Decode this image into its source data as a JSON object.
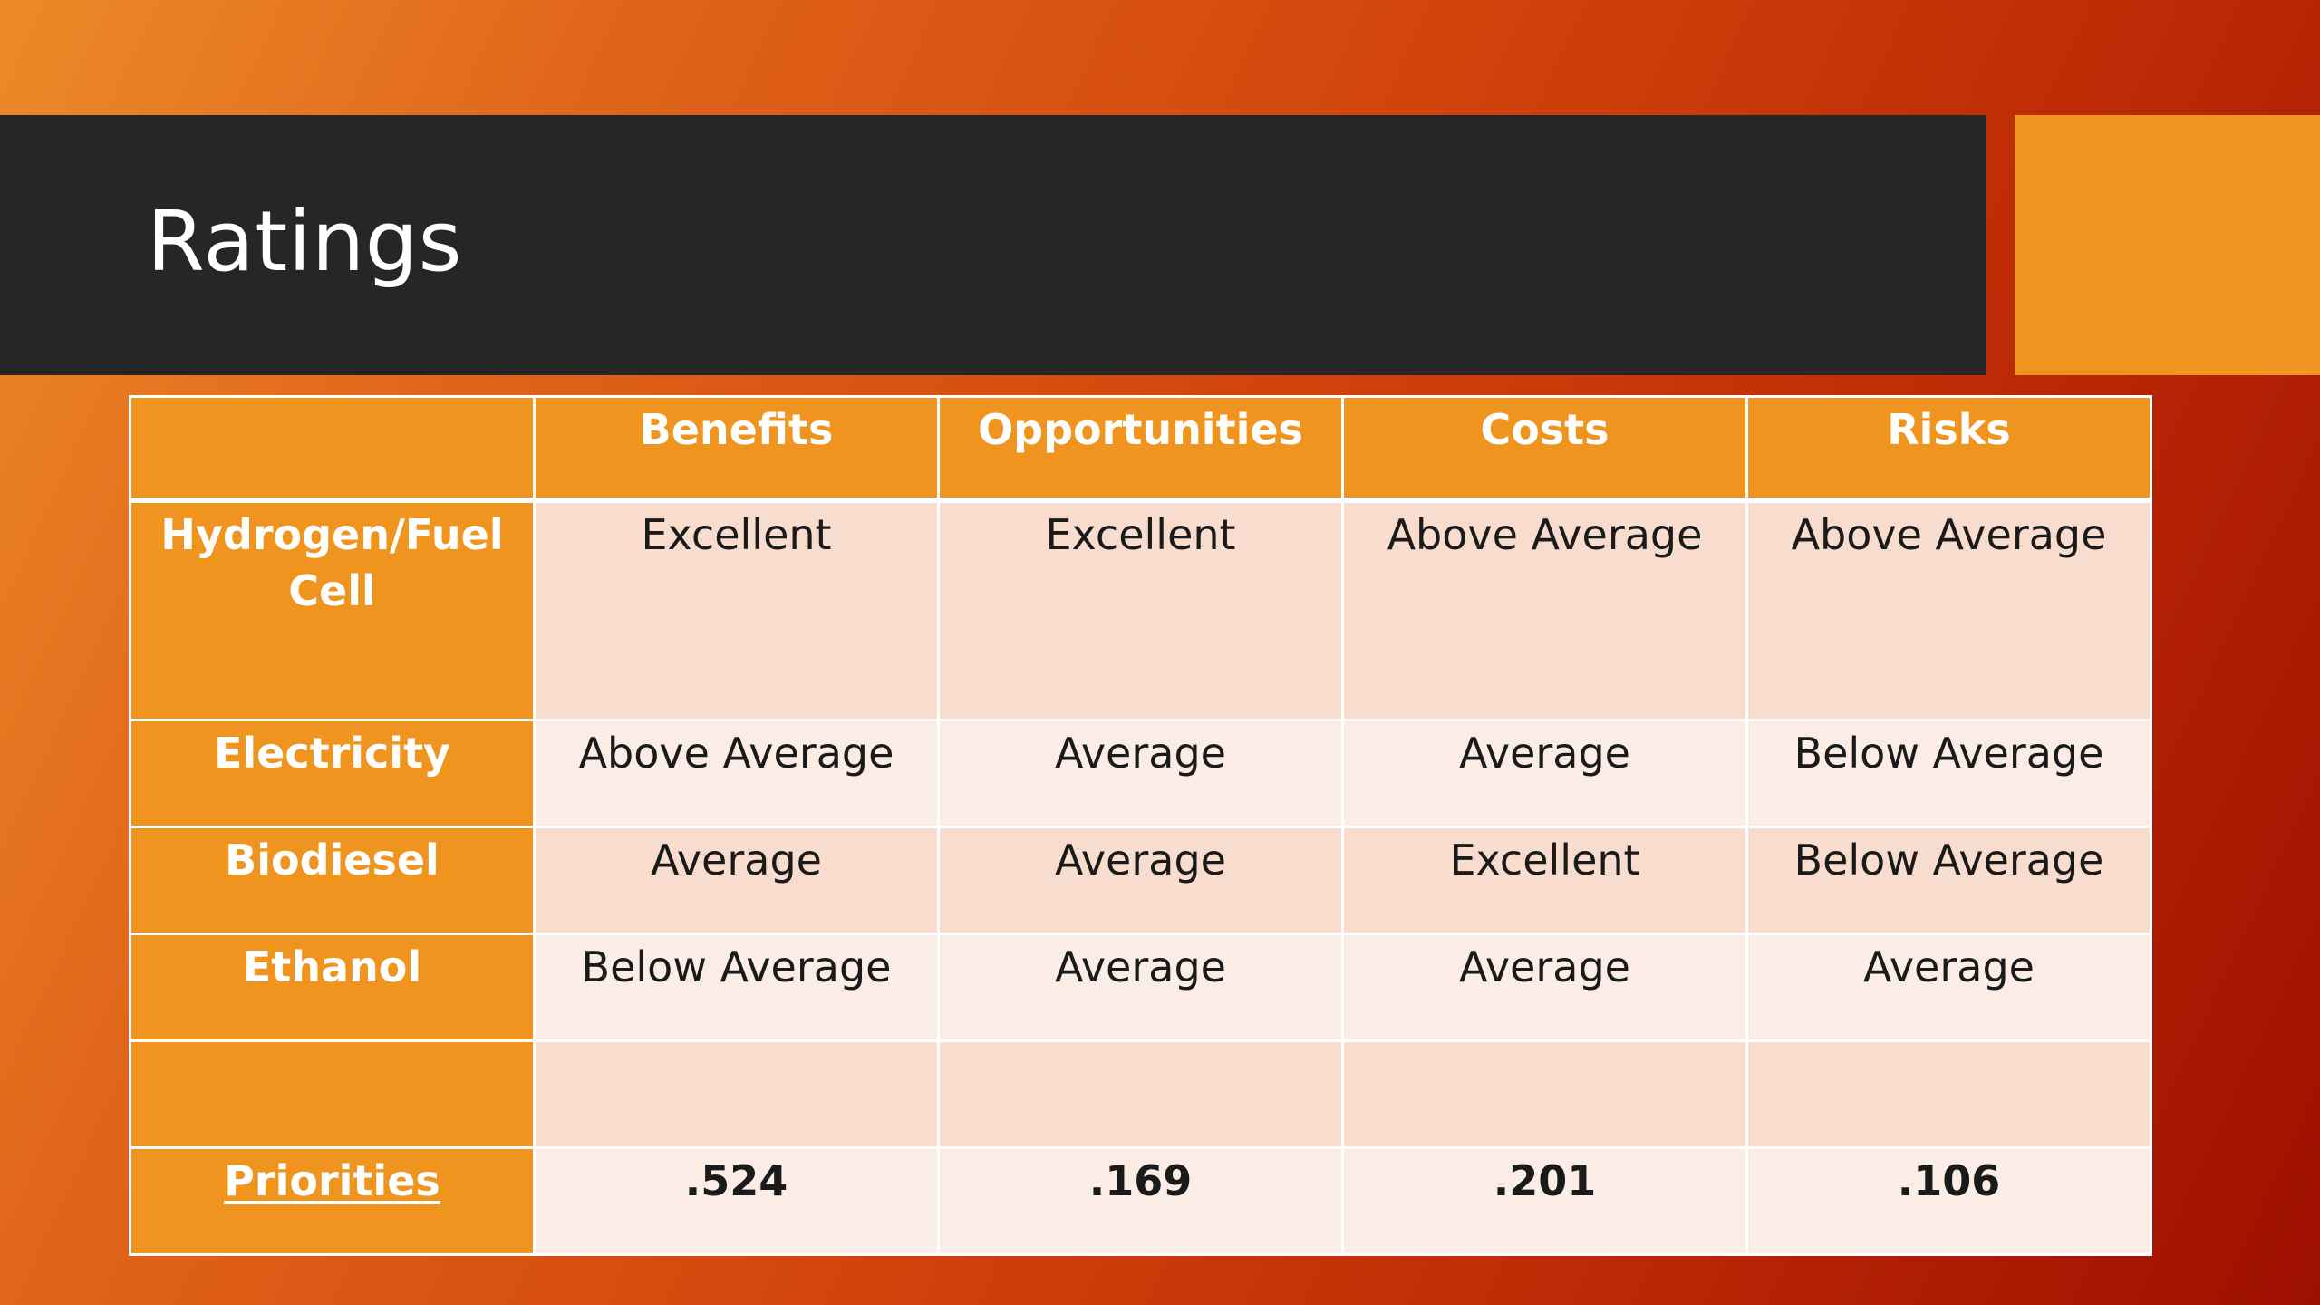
{
  "slide": {
    "title": "Ratings",
    "colors": {
      "title_bar": "#262626",
      "accent": "#ef951f",
      "row_light": "#fbede6",
      "row_dark": "#f8dccd"
    }
  },
  "table": {
    "headers": [
      "",
      "Benefits",
      "Opportunities",
      "Costs",
      "Risks"
    ],
    "rows": [
      {
        "label": "Hydrogen/Fuel Cell",
        "cells": [
          "Excellent",
          "Excellent",
          "Above Average",
          "Above Average"
        ]
      },
      {
        "label": "Electricity",
        "cells": [
          "Above Average",
          "Average",
          "Average",
          "Below Average"
        ]
      },
      {
        "label": "Biodiesel",
        "cells": [
          "Average",
          "Average",
          "Excellent",
          "Below Average"
        ]
      },
      {
        "label": "Ethanol",
        "cells": [
          "Below Average",
          "Average",
          "Average",
          "Average"
        ]
      },
      {
        "label": "",
        "cells": [
          "",
          "",
          "",
          ""
        ]
      }
    ],
    "priorities": {
      "label": "Priorities",
      "values": [
        ".524",
        ".169",
        ".201",
        ".106"
      ]
    }
  }
}
